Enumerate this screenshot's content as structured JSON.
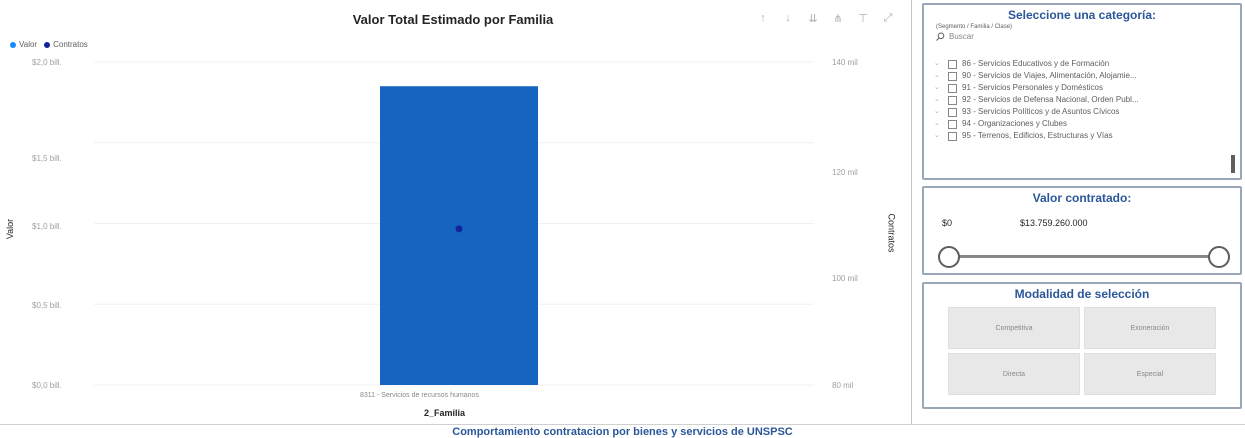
{
  "chart": {
    "title": "Valor Total Estimado por Familia",
    "legend": [
      {
        "label": "Valor",
        "color": "#118DFF"
      },
      {
        "label": "Contratos",
        "color": "#12239E"
      }
    ],
    "toolbar_icons": [
      "arrow-up-icon",
      "arrow-down-icon",
      "double-arrow-down-icon",
      "fork-icon",
      "filter-icon",
      "focus-mode-icon"
    ],
    "y_left_label": "Valor",
    "y_right_label": "Contratos",
    "x_label": "2_Familia"
  },
  "chart_data": {
    "type": "bar",
    "categories": [
      "8311 - Servicios de recursos humanos"
    ],
    "series": [
      {
        "name": "Valor",
        "values": [
          1.85
        ],
        "color": "#1565C0",
        "axis": "left"
      },
      {
        "name": "Contratos",
        "values": [
          109
        ],
        "color": "#12239E",
        "axis": "right",
        "marker": "point"
      }
    ],
    "y_left_ticks": [
      "$2,0 bill.",
      "$1,5 bill.",
      "$1,0 bill.",
      "$0,5 bill.",
      "$0,0 bill."
    ],
    "y_right_ticks": [
      "140 mil",
      "120 mil",
      "100 mil",
      "80 mil"
    ],
    "ylim_left": [
      0,
      2.0
    ],
    "ylim_right": [
      80,
      140
    ],
    "ylabel_left": "Valor",
    "ylabel_right": "Contratos",
    "xlabel": "2_Familia",
    "title": "Valor Total Estimado por Familia"
  },
  "category_slicer": {
    "title": "Seleccione una categoría:",
    "subtitle": "(Segmento / Familia / Clase)",
    "search_placeholder": "Buscar",
    "items": [
      "86 - Servicios Educativos y de Formación",
      "90 - Servicios de Viajes, Alimentación, Alojamie...",
      "91 - Servicios Personales y Domésticos",
      "92 - Servicios de Defensa Nacional, Orden Publ...",
      "93 - Servicios Políticos y de Asuntos Cívicos",
      "94 - Organizaciones y Clubes",
      "95 - Terrenos, Edificios, Estructuras y Vías"
    ]
  },
  "value_slicer": {
    "title": "Valor contratado:",
    "min": "$0",
    "max": "$13.759.260.000"
  },
  "modality_slicer": {
    "title": "Modalidad de selección",
    "options": [
      "Competitiva",
      "Exoneración",
      "Directa",
      "Especial"
    ]
  },
  "footer": {
    "text": "Comportamiento contratacion por bienes y servicios de UNSPSC"
  }
}
